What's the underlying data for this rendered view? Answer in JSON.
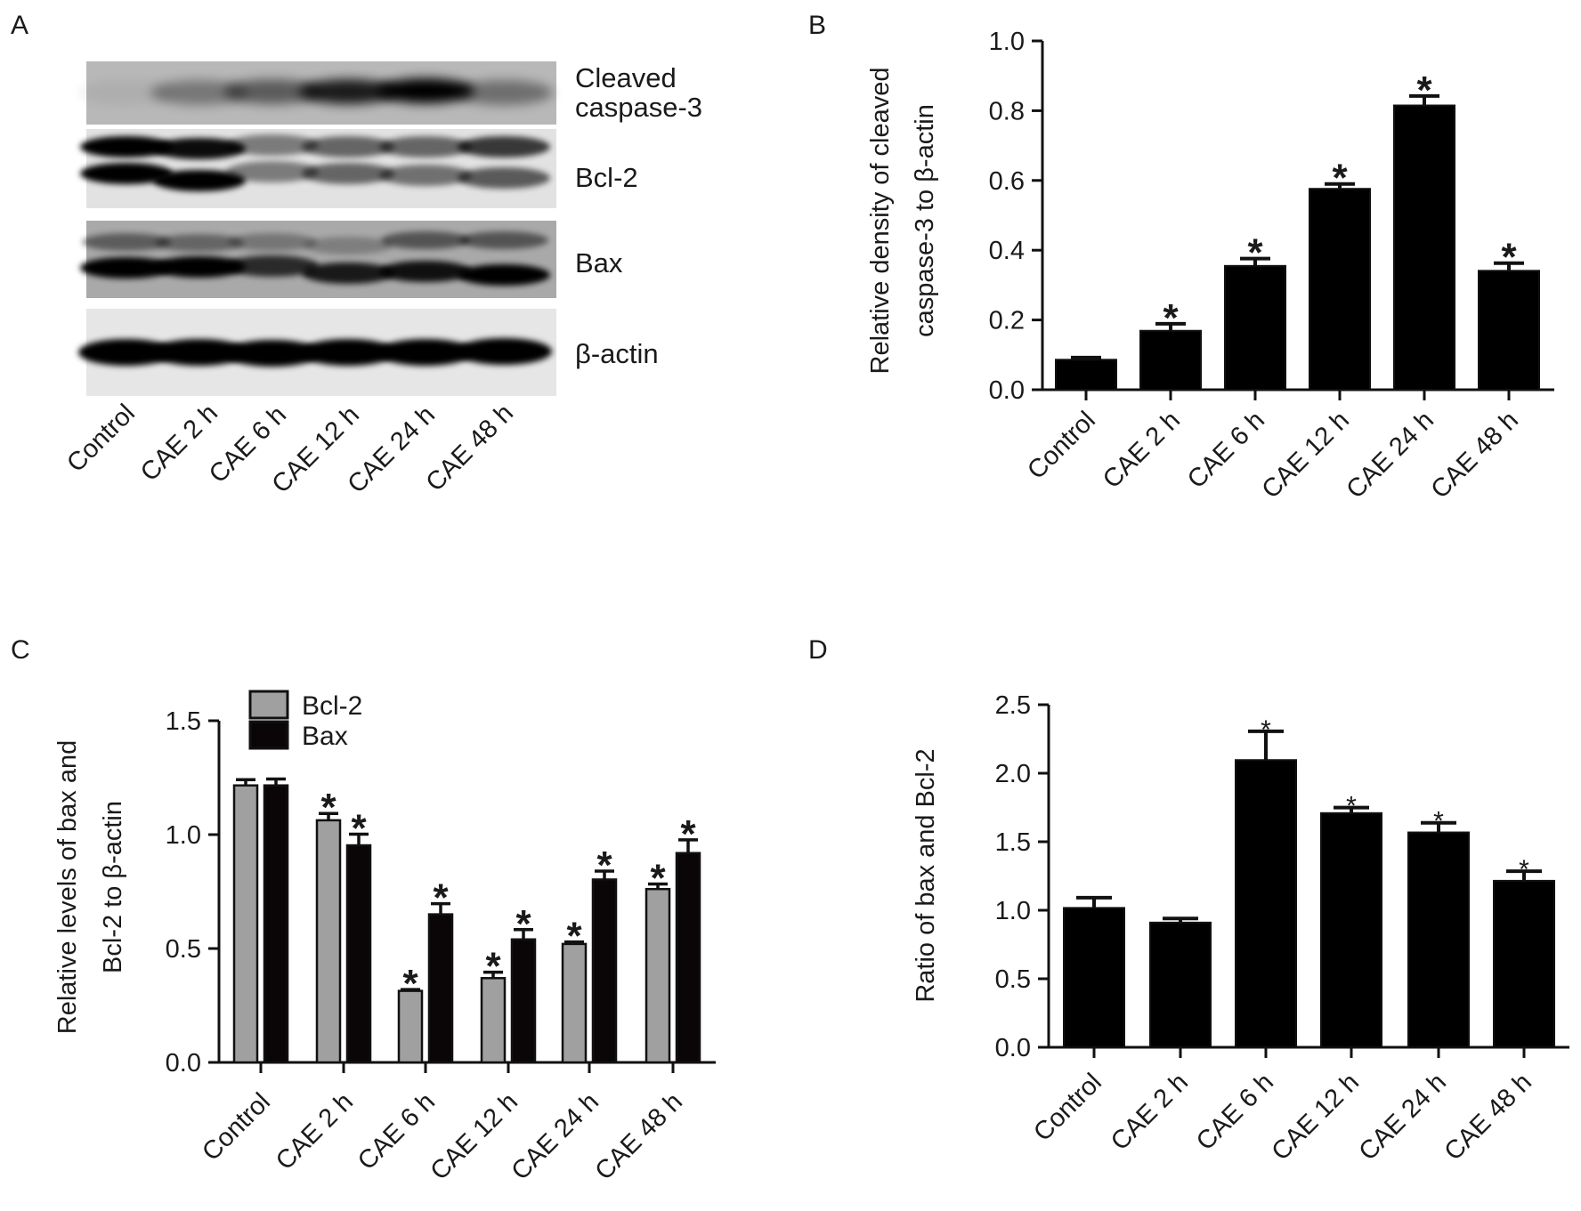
{
  "panel_labels": {
    "a": "A",
    "b": "B",
    "c": "C",
    "d": "D"
  },
  "blot": {
    "lanes": [
      "Control",
      "CAE 2 h",
      "CAE 6 h",
      "CAE 12 h",
      "CAE 24 h",
      "CAE 48 h"
    ],
    "proteins": {
      "cleaved_line1": "Cleaved",
      "cleaved_line2": "caspase-3",
      "bcl2": "Bcl-2",
      "bax": "Bax",
      "actin": "β-actin"
    }
  },
  "chart_data": [
    {
      "id": "B",
      "type": "bar",
      "categories": [
        "Control",
        "CAE 2 h",
        "CAE 6 h",
        "CAE 12 h",
        "CAE 24 h",
        "CAE 48 h"
      ],
      "values": [
        0.086,
        0.169,
        0.355,
        0.576,
        0.815,
        0.341
      ],
      "errors": [
        0.006,
        0.02,
        0.021,
        0.014,
        0.027,
        0.022
      ],
      "significant": [
        false,
        true,
        true,
        true,
        true,
        true
      ],
      "significance_marker": "*",
      "ylabel_lines": [
        "Relative density of cleaved",
        "caspase-3 to β-actin"
      ],
      "ylim": [
        0,
        1.0
      ],
      "yticks": [
        "0.0",
        "0.2",
        "0.4",
        "0.6",
        "0.8",
        "1.0"
      ],
      "color": "#000000",
      "grid": false
    },
    {
      "id": "C",
      "type": "bar",
      "categories": [
        "Control",
        "CAE 2 h",
        "CAE 6 h",
        "CAE 12 h",
        "CAE 24 h",
        "CAE 48 h"
      ],
      "series": [
        {
          "name": "Bcl-2",
          "color": "#a0a0a0",
          "values": [
            1.216,
            1.063,
            0.314,
            0.37,
            0.52,
            0.761
          ],
          "errors": [
            0.025,
            0.03,
            0.006,
            0.026,
            0.009,
            0.022
          ],
          "significant": [
            false,
            true,
            true,
            true,
            true,
            true
          ]
        },
        {
          "name": "Bax",
          "color": "#0a0608",
          "values": [
            1.216,
            0.953,
            0.65,
            0.54,
            0.803,
            0.919
          ],
          "errors": [
            0.028,
            0.049,
            0.047,
            0.043,
            0.037,
            0.058
          ],
          "significant": [
            false,
            true,
            true,
            true,
            true,
            true
          ]
        }
      ],
      "significance_marker": "*",
      "ylabel_lines": [
        "Relative levels of bax and",
        "Bcl-2 to β-actin"
      ],
      "ylim": [
        0,
        1.5
      ],
      "yticks": [
        "0.0",
        "0.5",
        "1.0",
        "1.5"
      ],
      "legend": "top-left",
      "grid": false
    },
    {
      "id": "D",
      "type": "bar",
      "categories": [
        "Control",
        "CAE 2 h",
        "CAE 6 h",
        "CAE 12 h",
        "CAE 24 h",
        "CAE 48 h"
      ],
      "values": [
        1.017,
        0.91,
        2.096,
        1.709,
        1.568,
        1.215
      ],
      "errors": [
        0.075,
        0.03,
        0.21,
        0.04,
        0.07,
        0.07
      ],
      "significant": [
        false,
        false,
        true,
        true,
        true,
        true
      ],
      "significance_marker": "*",
      "ylabel_lines": [
        "Ratio of bax and Bcl-2"
      ],
      "ylim": [
        0,
        2.5
      ],
      "yticks": [
        "0.0",
        "0.5",
        "1.0",
        "1.5",
        "2.0",
        "2.5"
      ],
      "color": "#000000",
      "grid": false
    }
  ]
}
